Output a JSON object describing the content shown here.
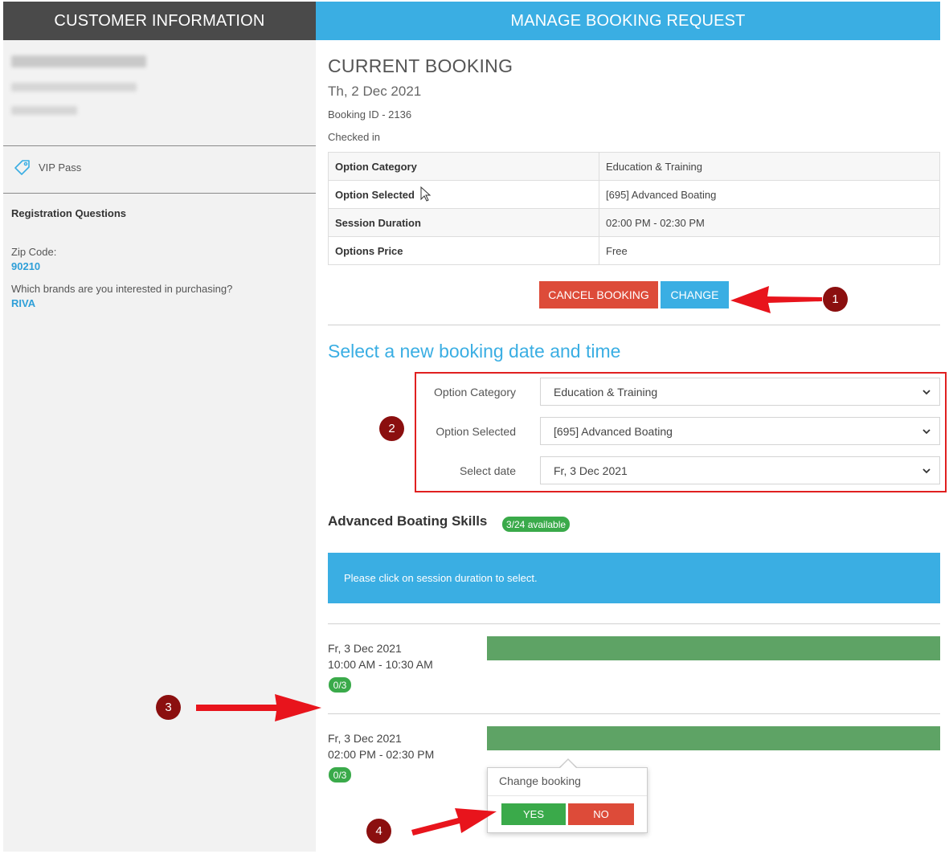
{
  "left": {
    "header": "CUSTOMER INFORMATION",
    "vip_label": "VIP Pass",
    "registration_title": "Registration Questions",
    "questions": [
      {
        "label": "Zip Code:",
        "value": "90210"
      },
      {
        "label": "Which brands are you interested in purchasing?",
        "value": "RIVA"
      }
    ]
  },
  "right": {
    "header": "MANAGE BOOKING REQUEST",
    "current": {
      "title": "CURRENT BOOKING",
      "date": "Th, 2 Dec 2021",
      "booking_id": "Booking ID - 2136",
      "status": "Checked in",
      "rows": [
        {
          "key": "Option Category",
          "value": "Education & Training"
        },
        {
          "key": "Option Selected",
          "value": "[695] Advanced Boating"
        },
        {
          "key": "Session Duration",
          "value": "02:00 PM - 02:30 PM"
        },
        {
          "key": "Options Price",
          "value": "Free"
        }
      ],
      "cancel_label": "CANCEL BOOKING",
      "change_label": "CHANGE"
    },
    "select": {
      "title": "Select a new booking date and time",
      "fields": [
        {
          "label": "Option Category",
          "value": "Education & Training"
        },
        {
          "label": "Option Selected",
          "value": "[695] Advanced Boating"
        },
        {
          "label": "Select date",
          "value": "Fr, 3 Dec 2021"
        }
      ]
    },
    "sessions": {
      "title": "Advanced Boating Skills",
      "availability": "3/24 available",
      "hint": "Please click on session duration to select.",
      "items": [
        {
          "date": "Fr, 3 Dec 2021",
          "time": "10:00 AM - 10:30 AM",
          "count": "0/3"
        },
        {
          "date": "Fr, 3 Dec 2021",
          "time": "02:00 PM - 02:30 PM",
          "count": "0/3"
        }
      ]
    },
    "popover": {
      "title": "Change booking",
      "yes_label": "YES",
      "no_label": "NO"
    }
  },
  "annotations": [
    "1",
    "2",
    "3",
    "4"
  ],
  "colors": {
    "accent_blue": "#3aaee3",
    "danger_red": "#dd4b39",
    "success_green": "#3aaa4a",
    "bar_green": "#5ea365",
    "annotation_red": "#e02020"
  }
}
